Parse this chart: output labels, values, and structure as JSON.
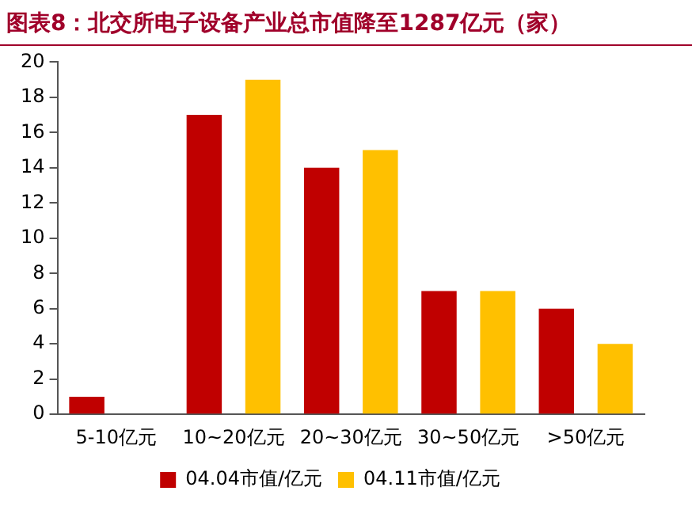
{
  "chart_data": {
    "type": "bar",
    "title": "图表8：北交所电子设备产业总市值降至1287亿元（家）",
    "categories": [
      "5-10亿元",
      "10~20亿元",
      "20~30亿元",
      "30~50亿元",
      ">50亿元"
    ],
    "series": [
      {
        "name": "04.04市值/亿元",
        "color": "#c00000",
        "values": [
          1,
          17,
          14,
          7,
          6
        ]
      },
      {
        "name": "04.11市值/亿元",
        "color": "#ffc000",
        "values": [
          0,
          19,
          15,
          7,
          4
        ]
      }
    ],
    "ylim": [
      0,
      20
    ],
    "yticks": [
      0,
      2,
      4,
      6,
      8,
      10,
      12,
      14,
      16,
      18,
      20
    ],
    "grid": false,
    "legend": "bottom"
  }
}
